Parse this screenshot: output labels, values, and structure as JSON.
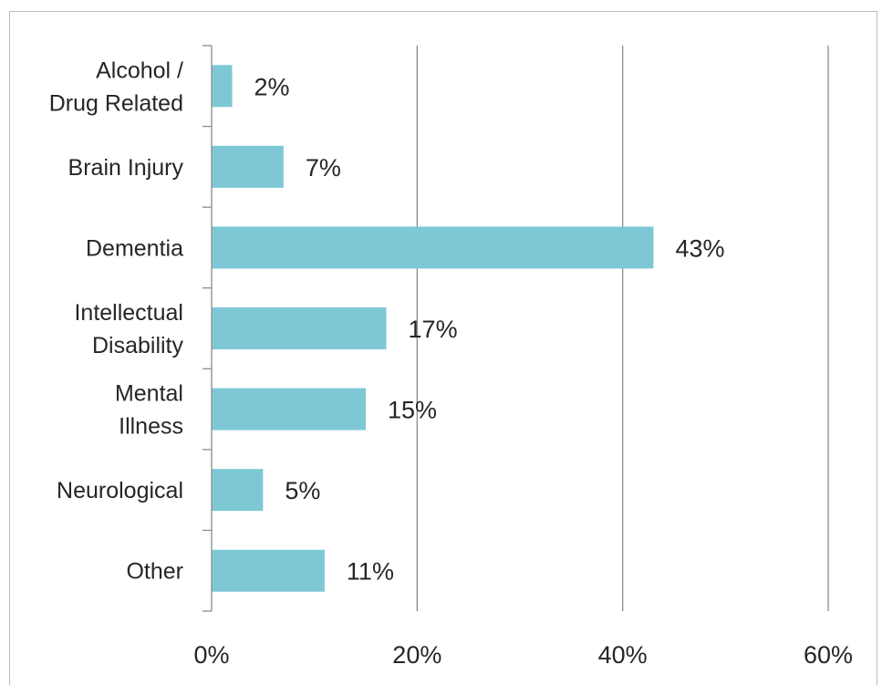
{
  "chart_data": {
    "type": "bar",
    "orientation": "horizontal",
    "categories": [
      [
        "Alcohol /",
        "Drug Related"
      ],
      [
        "Brain Injury"
      ],
      [
        "Dementia"
      ],
      [
        "Intellectual",
        "Disability"
      ],
      [
        "Mental",
        "Illness"
      ],
      [
        "Neurological"
      ],
      [
        "Other"
      ]
    ],
    "values": [
      2,
      7,
      43,
      17,
      15,
      5,
      11
    ],
    "value_labels": [
      "2%",
      "7%",
      "43%",
      "17%",
      "15%",
      "5%",
      "11%"
    ],
    "x_ticks": [
      "0%",
      "20%",
      "40%",
      "60%"
    ],
    "x_tick_values": [
      0,
      20,
      40,
      60
    ],
    "xlim": [
      0,
      60
    ],
    "title": "",
    "xlabel": "",
    "ylabel": "",
    "grid": "vertical",
    "legend": "none",
    "bar_color": "#7ec8d6",
    "grid_color": "#8c8c8c"
  }
}
